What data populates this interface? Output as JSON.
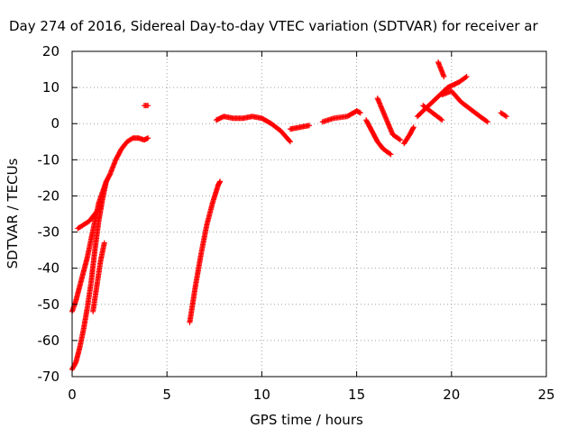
{
  "chart_data": {
    "type": "scatter",
    "title": "Day 274 of 2016, Sidereal Day-to-day VTEC variation (SDTVAR) for receiver ar",
    "xlabel": "GPS time / hours",
    "ylabel": "SDTVAR / TECUs",
    "xlim": [
      0,
      25
    ],
    "ylim": [
      -70,
      20
    ],
    "xticks": [
      0,
      5,
      10,
      15,
      20,
      25
    ],
    "yticks": [
      -70,
      -60,
      -50,
      -40,
      -30,
      -20,
      -10,
      0,
      10,
      20
    ],
    "xtick_labels": [
      "0",
      "5",
      "10",
      "15",
      "20",
      "25"
    ],
    "ytick_labels": [
      "-70",
      "-60",
      "-50",
      "-40",
      "-30",
      "-20",
      "-10",
      "0",
      "10",
      "20"
    ],
    "grid": true,
    "marker": "+",
    "color": "#ff0000",
    "series": [
      {
        "segments": [
          {
            "x": [
              0.0,
              0.2,
              0.4,
              0.6,
              0.8,
              1.0,
              1.2,
              1.4,
              1.6,
              1.8,
              2.0,
              2.3,
              2.6,
              2.9,
              3.2,
              3.5,
              3.8,
              4.0
            ],
            "y": [
              -52,
              -49,
              -45,
              -41,
              -37,
              -32,
              -27,
              -22,
              -19,
              -16,
              -14,
              -10,
              -7,
              -5,
              -4,
              -4,
              -4.5,
              -4
            ]
          },
          {
            "x": [
              0.3,
              0.6,
              0.9,
              1.2,
              1.5
            ],
            "y": [
              -29,
              -28,
              -27,
              -25,
              -23
            ]
          },
          {
            "x": [
              0.0,
              0.2,
              0.4,
              0.6,
              0.8,
              1.0,
              1.2,
              1.4,
              1.6,
              1.8
            ],
            "y": [
              -68,
              -66,
              -62,
              -57,
              -51,
              -44,
              -35,
              -27,
              -21,
              -16
            ]
          },
          {
            "x": [
              1.1,
              1.3,
              1.5,
              1.7
            ],
            "y": [
              -52,
              -45,
              -38,
              -33
            ]
          },
          {
            "x": [
              3.8,
              4.0
            ],
            "y": [
              5,
              5
            ]
          },
          {
            "x": [
              6.2,
              6.5,
              6.8,
              7.1,
              7.4,
              7.7,
              7.8
            ],
            "y": [
              -55,
              -45,
              -36,
              -28,
              -22,
              -17,
              -16
            ]
          },
          {
            "x": [
              7.6,
              8.0,
              8.5,
              9.0,
              9.5,
              10.0,
              10.5,
              11.0,
              11.5
            ],
            "y": [
              1,
              2,
              1.5,
              1.5,
              2,
              1.5,
              0,
              -2,
              -5
            ]
          },
          {
            "x": [
              11.5,
              12.0,
              12.5
            ],
            "y": [
              -1.5,
              -1,
              -0.5
            ]
          },
          {
            "x": [
              13.2,
              13.8,
              14.5,
              15.0,
              15.2
            ],
            "y": [
              0.5,
              1.5,
              2,
              3.5,
              3
            ]
          },
          {
            "x": [
              15.5,
              15.8,
              16.1,
              16.4,
              16.8
            ],
            "y": [
              1,
              -2,
              -5,
              -7,
              -8.5
            ]
          },
          {
            "x": [
              16.1,
              16.5,
              16.9,
              17.3
            ],
            "y": [
              7,
              2,
              -3,
              -4.5
            ]
          },
          {
            "x": [
              17.5,
              17.8,
              18.0
            ],
            "y": [
              -5.5,
              -3,
              -1
            ]
          },
          {
            "x": [
              18.2,
              18.6,
              19.0,
              19.4,
              19.8,
              20.0,
              20.4,
              20.8
            ],
            "y": [
              2,
              4,
              6,
              8,
              10,
              10.5,
              11.5,
              13
            ]
          },
          {
            "x": [
              18.5,
              19.0,
              19.5
            ],
            "y": [
              5,
              3,
              1
            ]
          },
          {
            "x": [
              19.3,
              19.6
            ],
            "y": [
              17,
              13
            ]
          },
          {
            "x": [
              19.5,
              20.0,
              20.5,
              21.0,
              21.5,
              21.9
            ],
            "y": [
              8,
              9,
              6,
              4,
              2,
              0.5
            ]
          },
          {
            "x": [
              22.6,
              22.9
            ],
            "y": [
              3,
              2
            ]
          }
        ]
      }
    ]
  }
}
